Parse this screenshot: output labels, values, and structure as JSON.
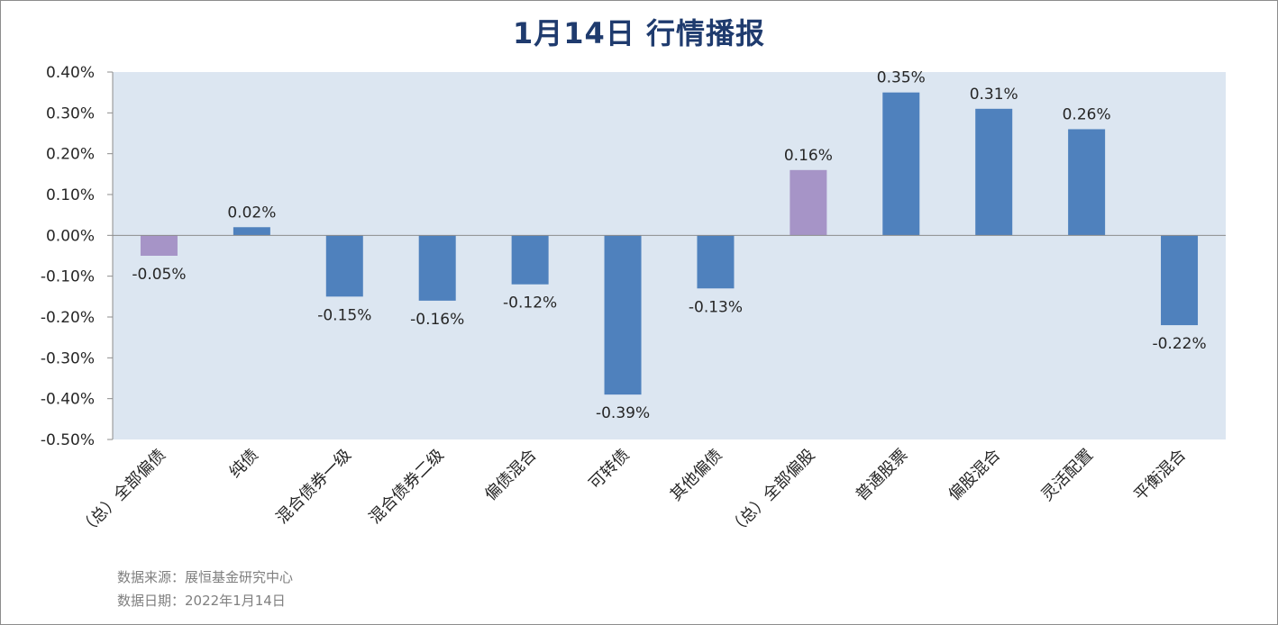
{
  "title": "1月14日  行情播报",
  "source_line": "数据来源：展恒基金研究中心",
  "date_line": "数据日期：2022年1月14日",
  "chart_data": {
    "type": "bar",
    "title": "1月14日  行情播报",
    "categories": [
      "（总）全部偏债",
      "纯债",
      "混合债券一级",
      "混合债券二级",
      "偏债混合",
      "可转债",
      "其他偏债",
      "（总）全部偏股",
      "普通股票",
      "偏股混合",
      "灵活配置",
      "平衡混合"
    ],
    "values": [
      -0.05,
      0.02,
      -0.15,
      -0.16,
      -0.12,
      -0.39,
      -0.13,
      0.16,
      0.35,
      0.31,
      0.26,
      -0.22
    ],
    "value_labels": [
      "-0.05%",
      "0.02%",
      "-0.15%",
      "-0.16%",
      "-0.12%",
      "-0.39%",
      "-0.13%",
      "0.16%",
      "0.35%",
      "0.31%",
      "0.26%",
      "-0.22%"
    ],
    "bar_colors": [
      "#a694c7",
      "#4f81bd",
      "#4f81bd",
      "#4f81bd",
      "#4f81bd",
      "#4f81bd",
      "#4f81bd",
      "#a694c7",
      "#4f81bd",
      "#4f81bd",
      "#4f81bd",
      "#4f81bd"
    ],
    "ylim": [
      -0.5,
      0.4
    ],
    "yticks": [
      0.4,
      0.3,
      0.2,
      0.1,
      0.0,
      -0.1,
      -0.2,
      -0.3,
      -0.4,
      -0.5
    ],
    "ytick_labels": [
      "0.40%",
      "0.30%",
      "0.20%",
      "0.10%",
      "0.00%",
      "-0.10%",
      "-0.20%",
      "-0.30%",
      "-0.40%",
      "-0.50%"
    ],
    "xlabel": "",
    "ylabel": "",
    "grid": false,
    "legend": "none",
    "plot_background": "#dce6f1"
  }
}
